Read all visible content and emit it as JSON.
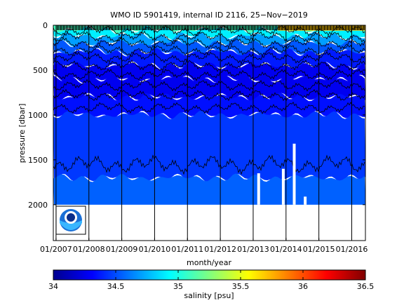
{
  "chart_data": {
    "type": "heatmap",
    "title": "WMO ID 5901419, internal ID 2116, 25−Nov−2019",
    "xlabel": "month/year",
    "ylabel": "pressure [dbar]",
    "x_tick_labels": [
      "01/2007",
      "01/2008",
      "01/2009",
      "01/2010",
      "01/2011",
      "01/2012",
      "01/2013",
      "01/2014",
      "01/2015",
      "01/2016"
    ],
    "xlim": [
      "2006-12",
      "2016-06"
    ],
    "y_tick_labels": [
      "0",
      "500",
      "1000",
      "1500",
      "2000"
    ],
    "y_ticks": [
      0,
      500,
      1000,
      1500,
      2000
    ],
    "ylim": [
      2400,
      0
    ],
    "y_reversed": true,
    "colorbar": {
      "label": "salinity [psu]",
      "range": [
        34,
        36.5
      ],
      "tick_labels": [
        "34",
        "34.5",
        "35",
        "35.5",
        "36",
        "36.5"
      ],
      "ticks": [
        34,
        34.5,
        35,
        35.5,
        36,
        36.5
      ],
      "colormap": "jet"
    },
    "profile_max_depth_dbar": 2000,
    "gaps_dbar": [
      {
        "date": "2013-03",
        "from": 1650,
        "to": 2000
      },
      {
        "date": "2013-12",
        "from": 1600,
        "to": 2000
      },
      {
        "date": "2014-04",
        "from": 1320,
        "to": 2000
      },
      {
        "date": "2014-08",
        "from": 1910,
        "to": 2000
      }
    ],
    "layers": [
      {
        "depth_dbar": 0,
        "salinity": 35.2
      },
      {
        "depth_dbar": 50,
        "salinity": 35.0
      },
      {
        "depth_dbar": 120,
        "salinity": 34.8
      },
      {
        "depth_dbar": 200,
        "salinity": 34.6
      },
      {
        "depth_dbar": 300,
        "salinity": 34.45
      },
      {
        "depth_dbar": 450,
        "salinity": 34.3
      },
      {
        "depth_dbar": 600,
        "salinity": 34.25
      },
      {
        "depth_dbar": 800,
        "salinity": 34.3
      },
      {
        "depth_dbar": 1000,
        "salinity": 34.4
      },
      {
        "depth_dbar": 1700,
        "salinity": 34.5
      },
      {
        "depth_dbar": 2000,
        "salinity": 34.6
      }
    ],
    "contours_dbar": [
      60,
      130,
      200,
      280,
      360,
      450,
      550,
      670,
      780,
      920,
      1550
    ],
    "surface_salty_period": [
      "2013-10",
      "2016-06"
    ],
    "logo": "noaa-logo"
  }
}
